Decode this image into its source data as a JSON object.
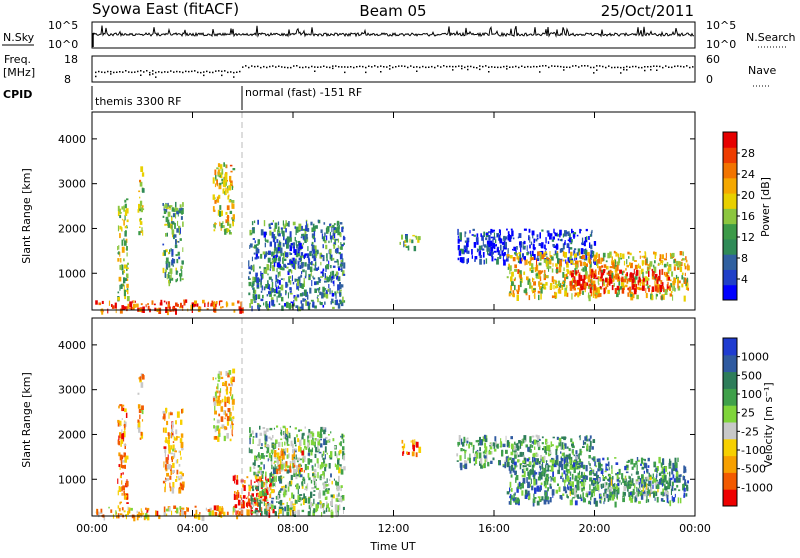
{
  "header": {
    "radar": "Syowa East (fitACF)",
    "beam": "Beam 05",
    "date": "25/Oct/2011"
  },
  "top_panels": {
    "nsky_label": "N.Sky",
    "nsky_ticks": [
      "10^5",
      "10^0"
    ],
    "nsearch_label": "N.Search",
    "nsearch_ticks": [
      "10^5",
      "10^0"
    ],
    "freq_label": "Freq.",
    "freq_unit": "[MHz]",
    "freq_ticks": [
      "18",
      "8"
    ],
    "nave_label": "Nave",
    "nave_ticks": [
      "60",
      "0"
    ],
    "cpid_label": "CPID",
    "cpid_segments": [
      {
        "label": "themis 3300 RF",
        "start_h": 0,
        "end_h": 6
      },
      {
        "label": "normal (fast) -151 RF",
        "start_h": 6,
        "end_h": 24
      }
    ]
  },
  "chart_data": [
    {
      "type": "heatmap",
      "panel": "power",
      "ylabel": "Slant Range [km]",
      "xlabel": "",
      "x_ticks": [
        "00:00",
        "04:00",
        "08:00",
        "12:00",
        "16:00",
        "20:00",
        "00:00"
      ],
      "x_tick_hours": [
        0,
        4,
        8,
        12,
        16,
        20,
        24
      ],
      "y_ticks": [
        1000,
        2000,
        3000,
        4000
      ],
      "ylim": [
        180,
        4600
      ],
      "xlim_hours": [
        0,
        24
      ],
      "colorbar": {
        "label": "Power [dB]",
        "ticks": [
          "28",
          "24",
          "20",
          "16",
          "12",
          "8",
          "4"
        ],
        "range": [
          0,
          32
        ],
        "colors": [
          "#0000ff",
          "#2040c8",
          "#3060a0",
          "#2f8a57",
          "#3c9a48",
          "#8cc63f",
          "#e8d000",
          "#f5a800",
          "#f27400",
          "#ee3c00",
          "#e60000"
        ]
      },
      "echo_regions": [
        {
          "t0": 0.1,
          "t1": 6.0,
          "r0": 190,
          "r1": 420,
          "level": 0.85
        },
        {
          "t0": 1.0,
          "t1": 1.4,
          "r0": 400,
          "r1": 2700,
          "level": 0.5
        },
        {
          "t0": 1.8,
          "t1": 2.0,
          "r0": 1900,
          "r1": 3400,
          "level": 0.55
        },
        {
          "t0": 2.8,
          "t1": 3.6,
          "r0": 800,
          "r1": 2600,
          "level": 0.35
        },
        {
          "t0": 4.8,
          "t1": 5.6,
          "r0": 1900,
          "r1": 3500,
          "level": 0.6
        },
        {
          "t0": 6.2,
          "t1": 10.0,
          "r0": 250,
          "r1": 2200,
          "level": 0.3
        },
        {
          "t0": 7.2,
          "t1": 8.5,
          "r0": 1200,
          "r1": 1700,
          "level": 0.2
        },
        {
          "t0": 12.2,
          "t1": 13.0,
          "r0": 1600,
          "r1": 1900,
          "level": 0.4
        },
        {
          "t0": 14.5,
          "t1": 20.0,
          "r0": 1300,
          "r1": 2000,
          "level": 0.1
        },
        {
          "t0": 16.5,
          "t1": 23.7,
          "r0": 500,
          "r1": 1500,
          "level": 0.6
        },
        {
          "t0": 19.0,
          "t1": 23.0,
          "r0": 650,
          "r1": 1100,
          "level": 0.95
        }
      ]
    },
    {
      "type": "heatmap",
      "panel": "velocity",
      "ylabel": "Slant Range [km]",
      "xlabel": "Time UT",
      "x_ticks": [
        "00:00",
        "04:00",
        "08:00",
        "12:00",
        "16:00",
        "20:00",
        "00:00"
      ],
      "x_tick_hours": [
        0,
        4,
        8,
        12,
        16,
        20,
        24
      ],
      "y_ticks": [
        1000,
        2000,
        3000,
        4000
      ],
      "ylim": [
        180,
        4600
      ],
      "xlim_hours": [
        0,
        24
      ],
      "colorbar": {
        "label": "Velocity [m s⁻¹]",
        "ticks": [
          "1000",
          "500",
          "100",
          "25",
          "-25",
          "-100",
          "-500",
          "-1000"
        ],
        "range": [
          -1200,
          1200
        ],
        "colors": [
          "#ee0000",
          "#f25a00",
          "#f7a000",
          "#f7d000",
          "#c8c8c8",
          "#7fd43a",
          "#3fa04a",
          "#2e7d5a",
          "#2f5aa0",
          "#1f3cd0"
        ]
      },
      "echo_regions": [
        {
          "t0": 0.1,
          "t1": 6.0,
          "r0": 190,
          "r1": 420,
          "level": 0.3
        },
        {
          "t0": 1.0,
          "t1": 1.4,
          "r0": 400,
          "r1": 2700,
          "level": 0.25
        },
        {
          "t0": 1.8,
          "t1": 2.0,
          "r0": 1900,
          "r1": 3400,
          "level": 0.3
        },
        {
          "t0": 2.8,
          "t1": 3.6,
          "r0": 800,
          "r1": 2600,
          "level": 0.3
        },
        {
          "t0": 4.8,
          "t1": 5.6,
          "r0": 1900,
          "r1": 3500,
          "level": 0.35
        },
        {
          "t0": 5.6,
          "t1": 7.2,
          "r0": 250,
          "r1": 1100,
          "level": 0.05
        },
        {
          "t0": 6.2,
          "t1": 10.0,
          "r0": 250,
          "r1": 2200,
          "level": 0.6
        },
        {
          "t0": 7.2,
          "t1": 8.5,
          "r0": 1200,
          "r1": 1700,
          "level": 0.3
        },
        {
          "t0": 12.2,
          "t1": 13.0,
          "r0": 1600,
          "r1": 1900,
          "level": 0.2
        },
        {
          "t0": 14.5,
          "t1": 20.0,
          "r0": 1300,
          "r1": 2000,
          "level": 0.65
        },
        {
          "t0": 16.5,
          "t1": 23.7,
          "r0": 500,
          "r1": 1500,
          "level": 0.75
        },
        {
          "t0": 19.0,
          "t1": 23.0,
          "r0": 650,
          "r1": 1100,
          "level": 0.6
        }
      ]
    }
  ]
}
